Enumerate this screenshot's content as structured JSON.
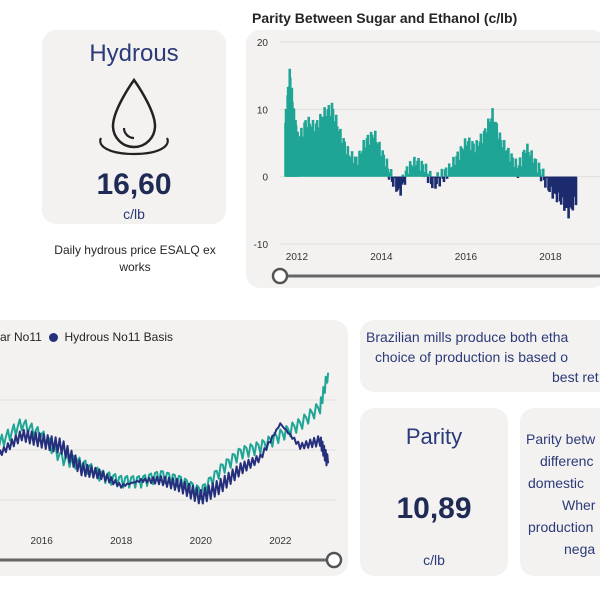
{
  "hydrous_card": {
    "title": "Hydrous",
    "value": "16,60",
    "unit": "c/lb",
    "icon": "water-drop-icon",
    "caption_line1": "Daily hydrous price ESALQ ex",
    "caption_line2": "works"
  },
  "parity_card": {
    "title": "Parity",
    "value": "10,89",
    "unit": "c/lb"
  },
  "info_text": {
    "line1": "Brazilian mills produce both etha",
    "line2": "choice of production is based o",
    "line3": "best ret"
  },
  "parity_desc": {
    "line1": "Parity betw",
    "line2": "differenc",
    "line3": "domestic",
    "line4": "Wher",
    "line5": "production",
    "line6": "nega"
  },
  "colors": {
    "positive": "#1fa595",
    "negative": "#1c2a6e",
    "teal_line": "#1fa595",
    "navy_line": "#262f7c",
    "card": "#f3f2f1"
  },
  "chart_data": [
    {
      "type": "area",
      "title": "Parity Between Sugar and Ethanol (c/lb)",
      "ylim": [
        -10,
        20
      ],
      "y_ticks": [
        "20",
        "10",
        "0",
        "-10"
      ],
      "x_ticks": [
        "2012",
        "2014",
        "2016",
        "2018"
      ],
      "x": [
        2011.7,
        2011.8,
        2011.9,
        2012.0,
        2012.2,
        2012.4,
        2012.6,
        2012.8,
        2013.0,
        2013.2,
        2013.4,
        2013.6,
        2013.8,
        2014.0,
        2014.2,
        2014.4,
        2014.6,
        2014.8,
        2015.0,
        2015.2,
        2015.4,
        2015.6,
        2015.8,
        2016.0,
        2016.2,
        2016.4,
        2016.6,
        2016.8,
        2017.0,
        2017.2,
        2017.4,
        2017.6,
        2017.8,
        2018.0,
        2018.2,
        2018.4,
        2018.6
      ],
      "values": [
        8,
        15,
        9,
        5,
        8,
        7,
        9,
        10,
        6,
        3,
        2,
        5,
        6,
        3,
        0,
        -2,
        1,
        2,
        1,
        -1,
        0,
        1,
        3,
        5,
        4,
        6,
        9,
        5,
        3,
        1,
        4,
        2,
        0,
        -2,
        -3,
        -5,
        -3
      ],
      "slider": "time-range-slider"
    },
    {
      "type": "line",
      "legend": [
        "ar No11",
        "Hydrous No11 Basis"
      ],
      "x_ticks": [
        "2016",
        "2018",
        "2020",
        "2022"
      ],
      "x": [
        2014.6,
        2015.0,
        2015.5,
        2016.0,
        2016.5,
        2017.0,
        2017.5,
        2018.0,
        2018.5,
        2019.0,
        2019.5,
        2020.0,
        2020.5,
        2021.0,
        2021.5,
        2022.0,
        2022.5,
        2023.0,
        2023.2
      ],
      "series": [
        {
          "name": "ar No11",
          "color": "#1fa595",
          "values": [
            18,
            19,
            22,
            20,
            16,
            15,
            13,
            12,
            12,
            13,
            12,
            10,
            14,
            17,
            18,
            20,
            22,
            25,
            31
          ]
        },
        {
          "name": "Hydrous No11 Basis",
          "color": "#262f7c",
          "values": [
            15,
            17,
            20,
            19,
            18,
            14,
            13,
            11,
            12,
            12,
            11,
            9,
            11,
            14,
            16,
            22,
            18,
            19,
            15
          ]
        }
      ],
      "ylim": [
        5,
        35
      ],
      "slider": "time-range-slider"
    }
  ]
}
